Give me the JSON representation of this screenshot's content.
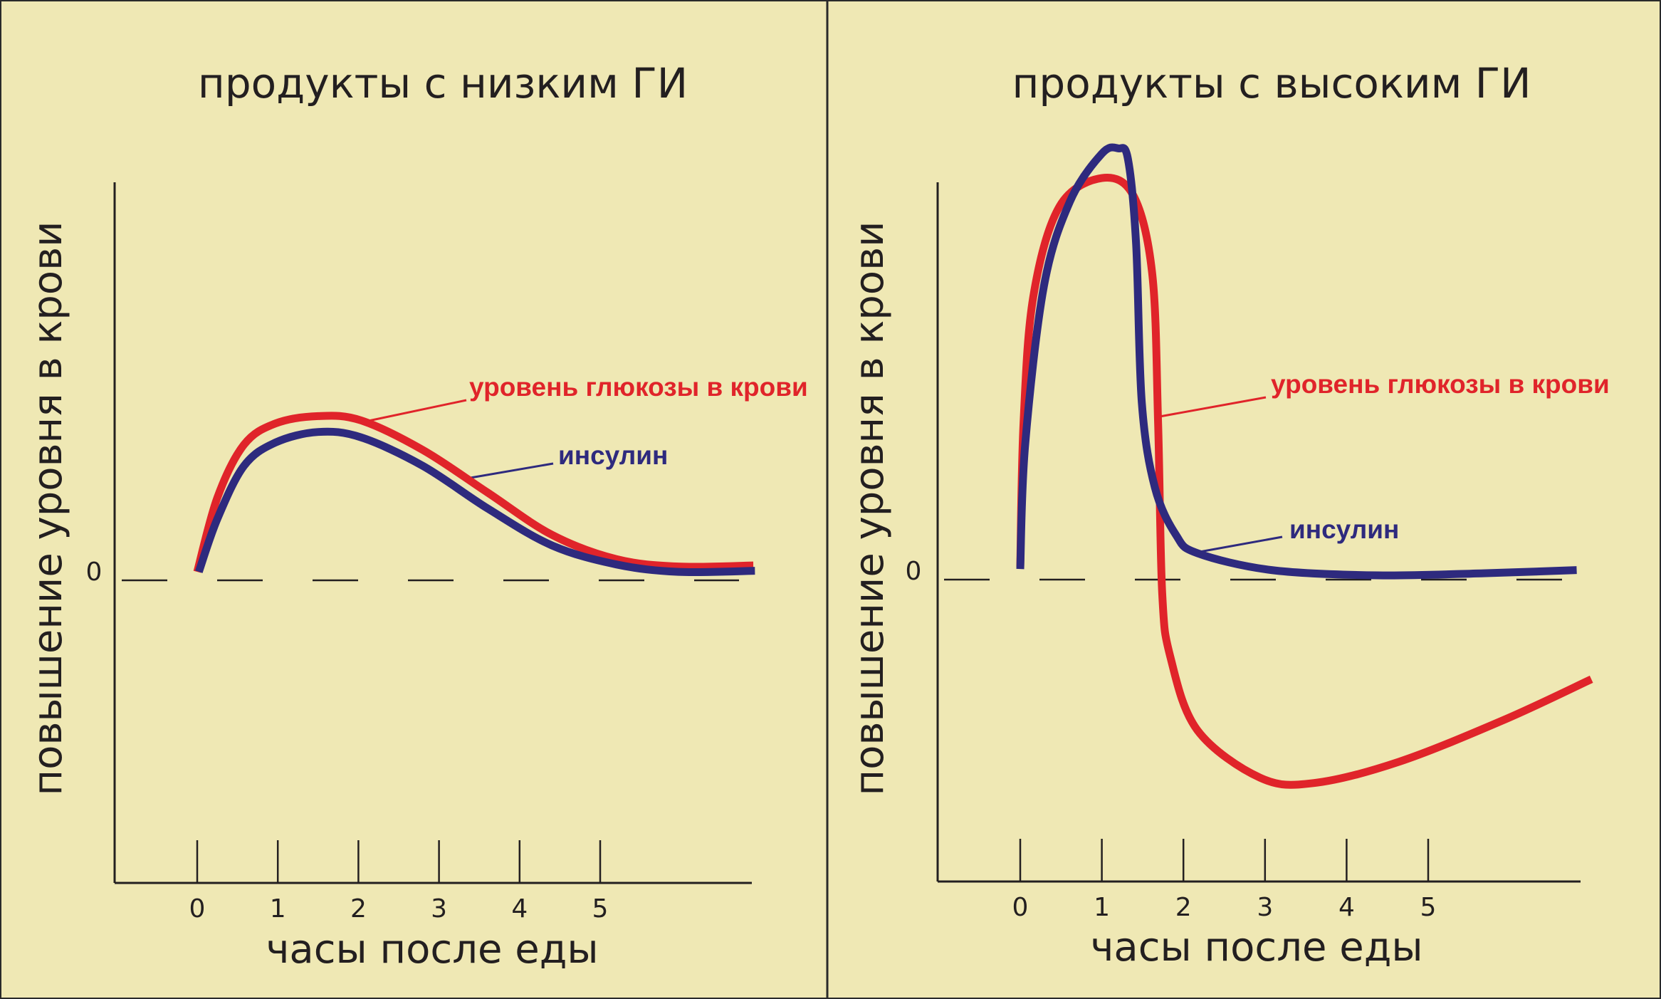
{
  "colors": {
    "background": "#efe8b4",
    "glucose": "#e0242a",
    "insulin": "#2e2a7e",
    "axis": "#231f20"
  },
  "chart_data": [
    {
      "type": "line",
      "title": "продукты с низким ГИ",
      "xlabel": "часы после еды",
      "ylabel": "повышение уровня в крови",
      "x_ticks": [
        "0",
        "1",
        "2",
        "3",
        "4",
        "5"
      ],
      "y_ticks": [
        "0"
      ],
      "xlim": [
        -1,
        7
      ],
      "ylim": [
        -28.5,
        37.6
      ],
      "grid": false,
      "zero_line": "dashed",
      "series": [
        {
          "name": "уровень глюкозы в крови",
          "color": "#e0242a",
          "x": [
            0,
            0.25,
            0.58,
            0.97,
            1.5,
            2.03,
            2.8,
            3.6,
            4.4,
            5.2,
            5.97,
            6.9
          ],
          "y": [
            0.8,
            7.8,
            12.8,
            14.8,
            15.5,
            15.1,
            12.3,
            8.3,
            4.3,
            2.0,
            1.3,
            1.4
          ]
        },
        {
          "name": "инсулин",
          "color": "#2e2a7e",
          "x": [
            0.02,
            0.25,
            0.58,
            0.97,
            1.5,
            2.03,
            2.8,
            3.6,
            4.4,
            5.2,
            5.97,
            6.92
          ],
          "y": [
            0.8,
            5.8,
            10.8,
            13,
            14,
            13.5,
            10.8,
            6.8,
            3.3,
            1.5,
            0.8,
            0.9
          ]
        }
      ]
    },
    {
      "type": "line",
      "title": "продукты с высоким ГИ",
      "xlabel": "часы после еды",
      "ylabel": "повышение уровня в крови",
      "x_ticks": [
        "0",
        "1",
        "2",
        "3",
        "4",
        "5"
      ],
      "y_ticks": [
        "0"
      ],
      "xlim": [
        -1,
        7
      ],
      "ylim": [
        -28.5,
        37.6
      ],
      "grid": false,
      "zero_line": "dashed",
      "series": [
        {
          "name": "уровень глюкозы в крови",
          "color": "#e0242a",
          "x": [
            0,
            0.04,
            0.16,
            0.48,
            1,
            1.39,
            1.62,
            1.69,
            1.74,
            1.84,
            2.17,
            2.94,
            3.6,
            4.64,
            5.94,
            7.0
          ],
          "y": [
            1.2,
            14.7,
            26.7,
            35.2,
            37.9,
            36.2,
            28.7,
            14.7,
            -1.3,
            -7.3,
            -14.2,
            -18.7,
            -19.2,
            -17.2,
            -13.2,
            -9.4
          ]
        },
        {
          "name": "инсулин",
          "color": "#2e2a7e",
          "x": [
            0,
            0.06,
            0.29,
            0.61,
            1,
            1.2,
            1.32,
            1.42,
            1.49,
            1.65,
            1.91,
            2.17,
            3.08,
            4.38,
            5.68,
            6.82
          ],
          "y": [
            1,
            12.7,
            27.7,
            35.7,
            40.2,
            40.7,
            39.7,
            31.7,
            16.7,
            8.7,
            4.2,
            2.5,
            0.9,
            0.4,
            0.6,
            0.9
          ]
        }
      ]
    }
  ]
}
